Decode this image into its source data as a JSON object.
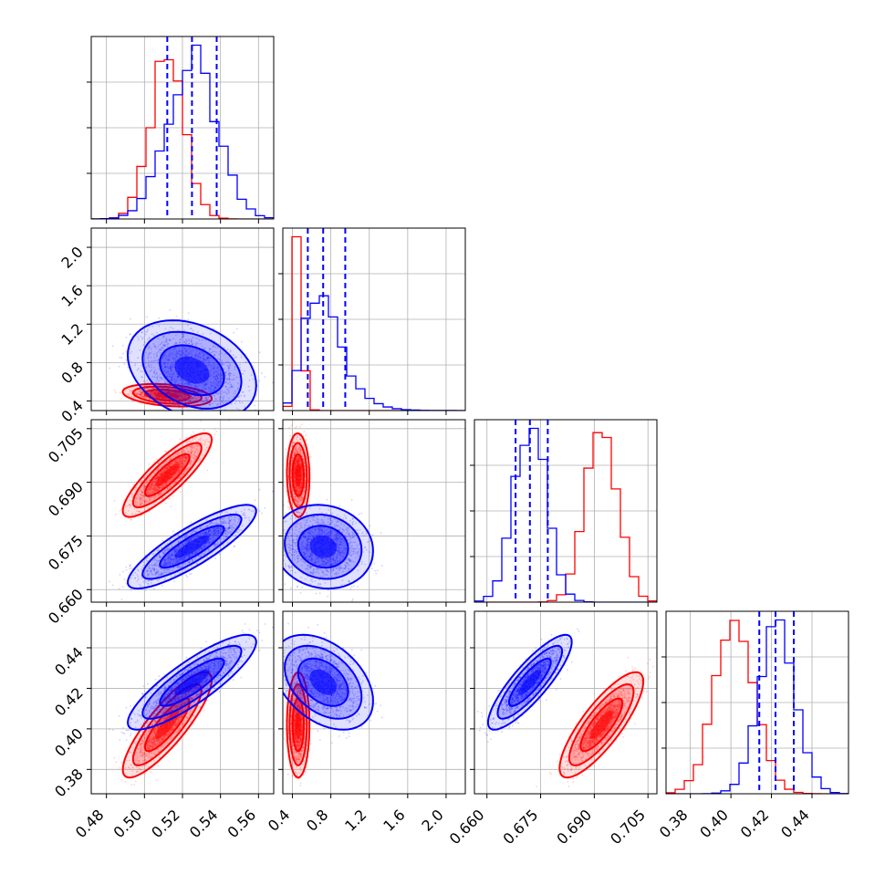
{
  "chart_data": {
    "type": "corner",
    "params": [
      {
        "ticks": [
          0.48,
          0.5,
          0.52,
          0.54,
          0.56
        ],
        "lim": [
          0.472,
          0.568
        ],
        "tick_labels": [
          "0.48",
          "0.50",
          "0.52",
          "0.54",
          "0.56"
        ]
      },
      {
        "ticks": [
          0.4,
          0.8,
          1.2,
          1.6,
          2.0
        ],
        "lim": [
          0.3,
          2.2
        ],
        "tick_labels": [
          "0.4",
          "0.8",
          "1.2",
          "1.6",
          "2.0"
        ]
      },
      {
        "ticks": [
          0.66,
          0.675,
          0.69,
          0.705
        ],
        "lim": [
          0.6565,
          0.7075
        ],
        "tick_labels": [
          "0.660",
          "0.675",
          "0.690",
          "0.705"
        ]
      },
      {
        "ticks": [
          0.38,
          0.4,
          0.42,
          0.44
        ],
        "lim": [
          0.368,
          0.458
        ],
        "tick_labels": [
          "0.38",
          "0.40",
          "0.42",
          "0.44"
        ]
      }
    ],
    "series": [
      {
        "color": "#ff0000",
        "mean": [
          0.512,
          0.46,
          0.692,
          0.402
        ],
        "sd": [
          0.009,
          0.045,
          0.0045,
          0.01
        ],
        "corr": {
          "0-1": -0.3,
          "0-2": 0.85,
          "0-3": 0.85,
          "1-2": -0.05,
          "1-3": 0.0,
          "2-3": 0.82
        }
      },
      {
        "color": "#0000ff",
        "mean": [
          0.525,
          0.72,
          0.672,
          0.423
        ],
        "sd": [
          0.013,
          0.2,
          0.0045,
          0.009
        ],
        "corr": {
          "0-1": -0.3,
          "0-2": 0.85,
          "0-3": 0.85,
          "1-2": -0.1,
          "1-3": -0.4,
          "2-3": 0.85
        }
      }
    ],
    "quantile_lines": {
      "color": "#0000ff",
      "values": [
        [
          0.512,
          0.525,
          0.538
        ],
        [
          0.56,
          0.72,
          0.95
        ],
        [
          0.668,
          0.672,
          0.677
        ],
        [
          0.414,
          0.422,
          0.431
        ]
      ]
    },
    "histogram_bins": 20,
    "grid": true
  }
}
